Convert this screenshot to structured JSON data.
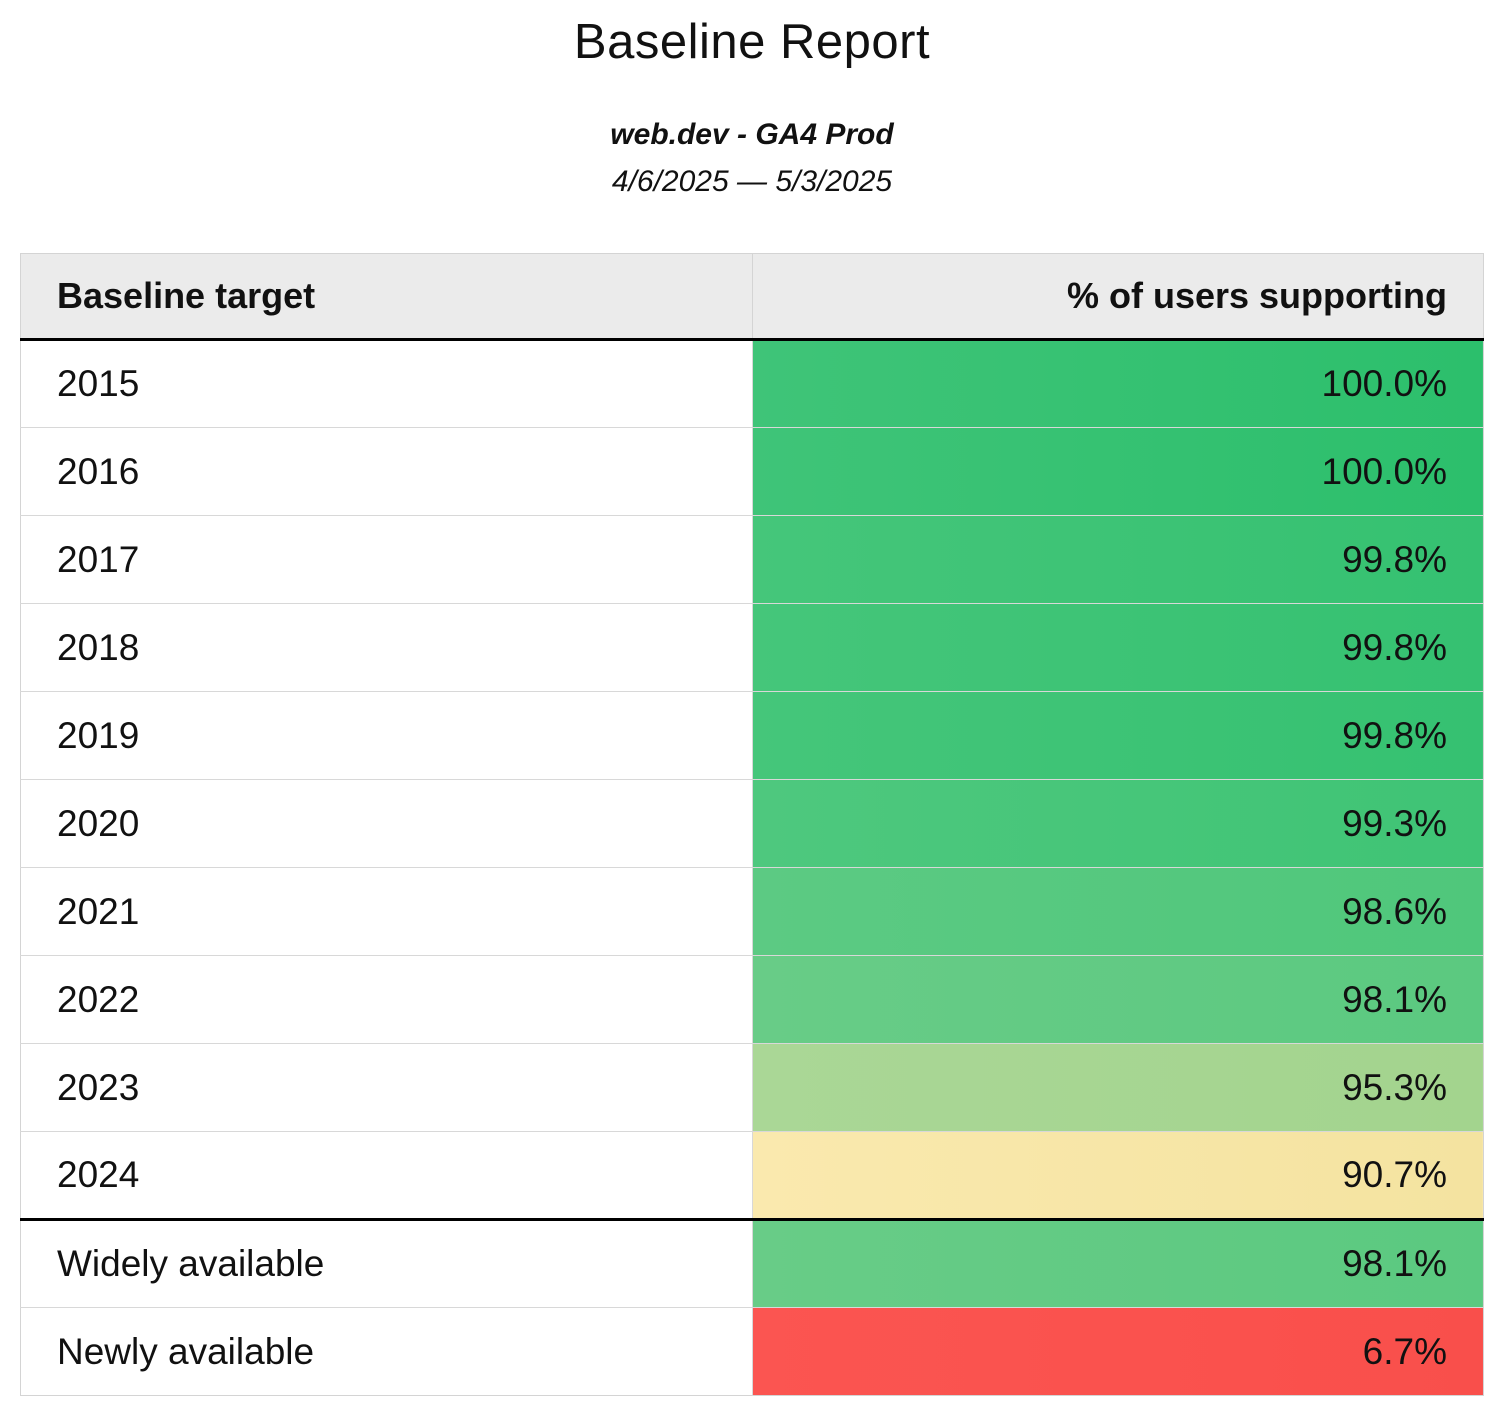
{
  "header": {
    "title": "Baseline Report",
    "subtitle": "web.dev - GA4 Prod",
    "date_range": "4/6/2025 — 5/3/2025"
  },
  "table": {
    "columns": [
      "Baseline target",
      "% of users supporting"
    ],
    "rows": [
      {
        "target": "2015",
        "value": "100.0%",
        "color": "#3fc478",
        "color2": "#2cbf6c"
      },
      {
        "target": "2016",
        "value": "100.0%",
        "color": "#3fc478",
        "color2": "#2cbf6c"
      },
      {
        "target": "2017",
        "value": "99.8%",
        "color": "#45c67a",
        "color2": "#35c171"
      },
      {
        "target": "2018",
        "value": "99.8%",
        "color": "#45c67a",
        "color2": "#35c171"
      },
      {
        "target": "2019",
        "value": "99.8%",
        "color": "#45c67a",
        "color2": "#35c171"
      },
      {
        "target": "2020",
        "value": "99.3%",
        "color": "#4ec87e",
        "color2": "#3fc475"
      },
      {
        "target": "2021",
        "value": "98.6%",
        "color": "#5cca83",
        "color2": "#4fc77b"
      },
      {
        "target": "2022",
        "value": "98.1%",
        "color": "#68cc87",
        "color2": "#5bc980"
      },
      {
        "target": "2023",
        "value": "95.3%",
        "color": "#aad796",
        "color2": "#a3d48e"
      },
      {
        "target": "2024",
        "value": "90.7%",
        "color": "#fae9ae",
        "color2": "#f4e3a0"
      },
      {
        "target": "Widely available",
        "value": "98.1%",
        "color": "#68cc87",
        "color2": "#5bc980"
      },
      {
        "target": "Newly available",
        "value": "6.7%",
        "color": "#fb5551",
        "color2": "#f94f4b"
      }
    ]
  },
  "chart_data": {
    "type": "table",
    "title": "Baseline Report",
    "subtitle": "web.dev - GA4 Prod",
    "date_range": "4/6/2025 — 5/3/2025",
    "columns": [
      "Baseline target",
      "% of users supporting"
    ],
    "categories": [
      "2015",
      "2016",
      "2017",
      "2018",
      "2019",
      "2020",
      "2021",
      "2022",
      "2023",
      "2024",
      "Widely available",
      "Newly available"
    ],
    "values": [
      100.0,
      100.0,
      99.8,
      99.8,
      99.8,
      99.3,
      98.6,
      98.1,
      95.3,
      90.7,
      98.1,
      6.7
    ],
    "value_unit": "%",
    "color_scale": "green-yellow-red heatmap on value column"
  }
}
